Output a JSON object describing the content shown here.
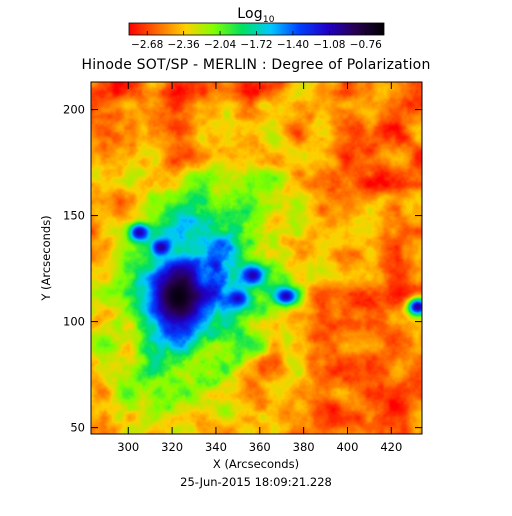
{
  "chart_data": {
    "type": "heatmap",
    "title": "Hinode SOT/SP - MERLIN : Degree of Polarization",
    "xlabel": "X (Arcseconds)",
    "ylabel": "Y (Arcseconds)",
    "xlim": [
      283,
      434
    ],
    "ylim": [
      47,
      213
    ],
    "x_ticks": [
      300,
      320,
      340,
      360,
      380,
      400,
      420
    ],
    "y_ticks": [
      50,
      100,
      150,
      200
    ],
    "x_tick_labels": [
      "300",
      "320",
      "340",
      "360",
      "380",
      "400",
      "420"
    ],
    "y_tick_labels": [
      "50",
      "100",
      "150",
      "200"
    ],
    "colorbar": {
      "label_base": "Log",
      "label_sub": "10",
      "range": [
        -2.84,
        -0.6
      ],
      "ticks": [
        -2.68,
        -2.36,
        -2.04,
        -1.72,
        -1.4,
        -1.08,
        -0.76
      ],
      "tick_labels": [
        "−2.68",
        "−2.36",
        "−2.04",
        "−1.72",
        "−1.40",
        "−1.08",
        "−0.76"
      ],
      "colormap": [
        "#ff0000",
        "#ff6a00",
        "#ffd000",
        "#80ff00",
        "#00e060",
        "#00c8ff",
        "#0040ff",
        "#2000c8",
        "#280050",
        "#000000"
      ]
    },
    "background_value": -2.55,
    "features": [
      {
        "kind": "sunspot umbra",
        "x": 323,
        "y": 112,
        "value": -0.65
      },
      {
        "kind": "pore",
        "x": 315,
        "y": 135,
        "value": -1.0
      },
      {
        "kind": "pore",
        "x": 305,
        "y": 142,
        "value": -1.05
      },
      {
        "kind": "pore",
        "x": 357,
        "y": 122,
        "value": -1.05
      },
      {
        "kind": "pore",
        "x": 372,
        "y": 112,
        "value": -1.05
      },
      {
        "kind": "pore",
        "x": 350,
        "y": 111,
        "value": -1.1
      },
      {
        "kind": "pore",
        "x": 432,
        "y": 107,
        "value": -1.0
      }
    ],
    "timestamp": "25-Jun-2015 18:09:21.228",
    "grid": false,
    "legend": "colorbar-top"
  }
}
